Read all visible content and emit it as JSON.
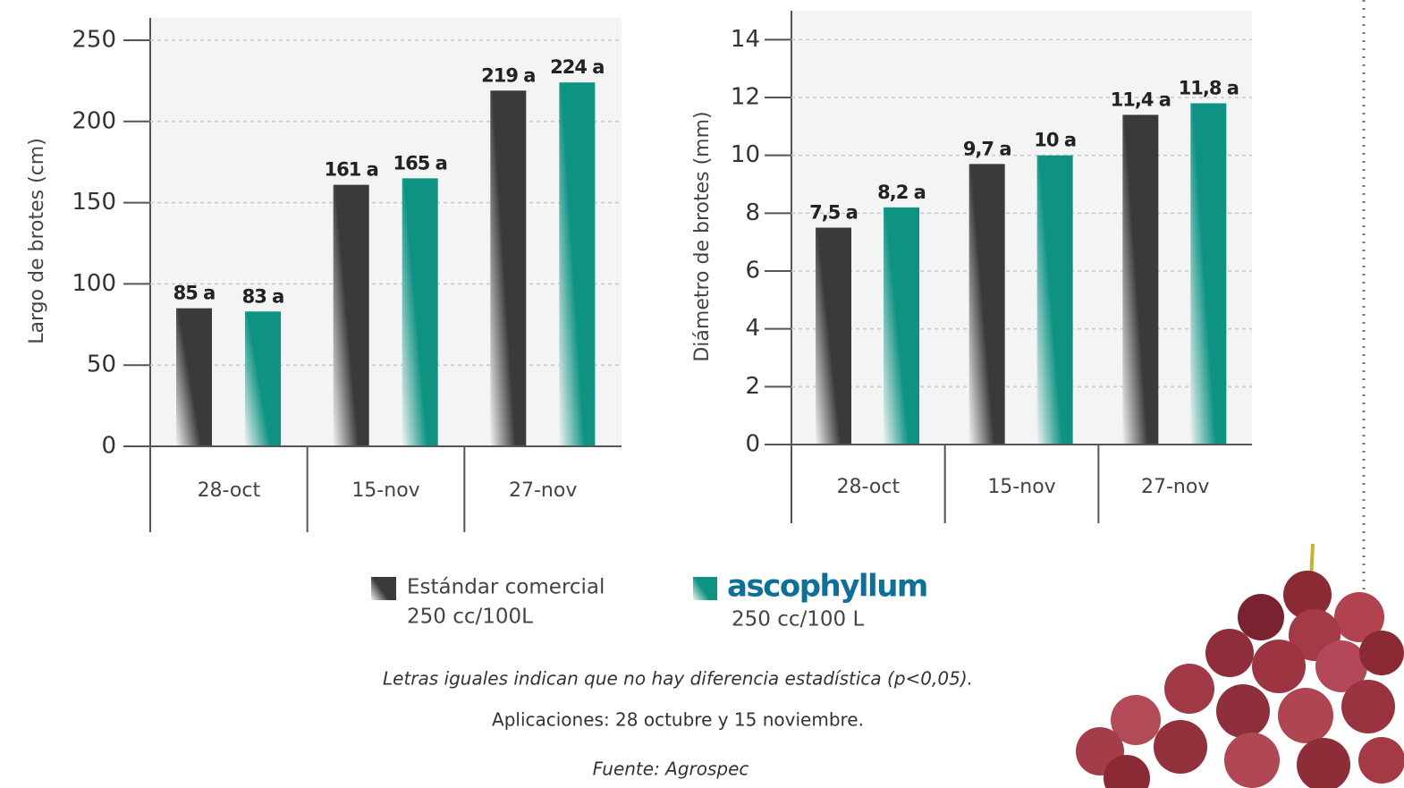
{
  "chart_data": [
    {
      "type": "bar",
      "y_label": "Largo de brotes (cm)",
      "categories": [
        "28-oct",
        "15-nov",
        "27-nov"
      ],
      "series": [
        {
          "name": "Estándar comercial",
          "legend_note": "250 cc/100L",
          "color": "#3a3a3c",
          "values": [
            85,
            161,
            219
          ],
          "value_labels": [
            "85 a",
            "161 a",
            "219 a"
          ]
        },
        {
          "name": "ascophyllum",
          "legend_note": "250 cc/100 L",
          "color": "#0e9383",
          "values": [
            83,
            165,
            224
          ],
          "value_labels": [
            "83 a",
            "165 a",
            "224 a"
          ]
        }
      ],
      "ylim": [
        0,
        250
      ],
      "yticks": [
        0,
        50,
        100,
        150,
        200,
        250
      ],
      "grid": true
    },
    {
      "type": "bar",
      "y_label": "Diámetro de brotes (mm)",
      "categories": [
        "28-oct",
        "15-nov",
        "27-nov"
      ],
      "series": [
        {
          "color": "#3a3a3c",
          "values": [
            7.5,
            9.7,
            11.4
          ],
          "value_labels": [
            "7,5 a",
            "9,7 a",
            "11,4 a"
          ]
        },
        {
          "color": "#0e9383",
          "values": [
            8.2,
            10,
            11.8
          ],
          "value_labels": [
            "8,2 a",
            "10 a",
            "11,8 a"
          ]
        }
      ],
      "ylim": [
        0,
        15
      ],
      "yticks": [
        0,
        2,
        4,
        6,
        8,
        10,
        12,
        14
      ],
      "grid": true
    }
  ],
  "notes": [
    "Letras iguales indican que no hay diferencia estadística (p<0,05).",
    "Aplicaciones: 28 octubre y 15 noviembre.",
    "Fuente: Agrospec"
  ]
}
